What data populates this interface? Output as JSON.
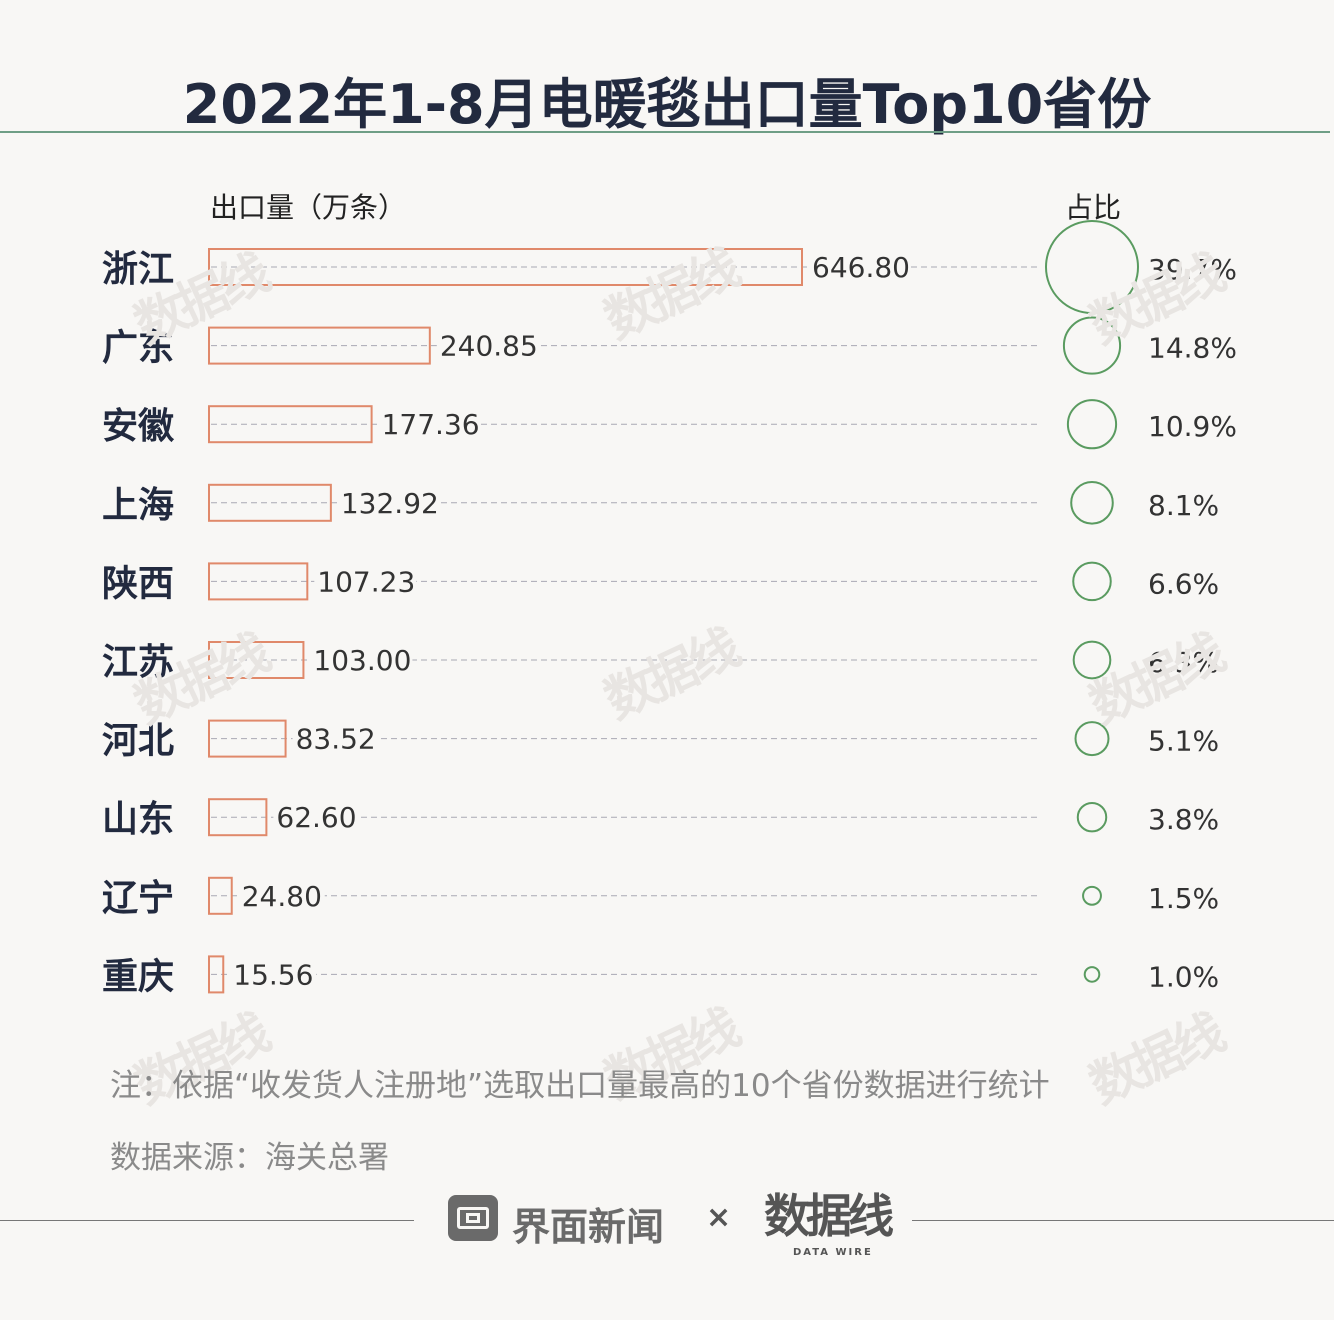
{
  "chart_data": {
    "type": "bar",
    "title": "2022年1-8月电暖毯出口量Top10省份",
    "xlabel": "出口量（万条）",
    "ratio_label": "占比",
    "categories": [
      "浙江",
      "广东",
      "安徽",
      "上海",
      "陕西",
      "江苏",
      "河北",
      "山东",
      "辽宁",
      "重庆"
    ],
    "values": [
      646.8,
      240.85,
      177.36,
      132.92,
      107.23,
      103.0,
      83.52,
      62.6,
      24.8,
      15.56
    ],
    "value_labels": [
      "646.80",
      "240.85",
      "177.36",
      "132.92",
      "107.23",
      "103.00",
      "83.52",
      "62.60",
      "24.80",
      "15.56"
    ],
    "shares": [
      39.7,
      14.8,
      10.9,
      8.1,
      6.6,
      6.3,
      5.1,
      3.8,
      1.5,
      1.0
    ],
    "share_labels": [
      "39.7%",
      "14.8%",
      "10.9%",
      "8.1%",
      "6.6%",
      "6.3%",
      "5.1%",
      "3.8%",
      "1.5%",
      "1.0%"
    ],
    "bar_color": "#e0896a",
    "circle_color": "#5a9b60"
  },
  "note": "注：依据“收发货人注册地”选取出口量最高的10个省份数据进行统计",
  "source": "数据来源：海关总署",
  "footer": {
    "brand": "界面新闻",
    "times": "×",
    "partner": "数据线",
    "partner_sub": "DATA WIRE"
  },
  "watermark": "数据线"
}
